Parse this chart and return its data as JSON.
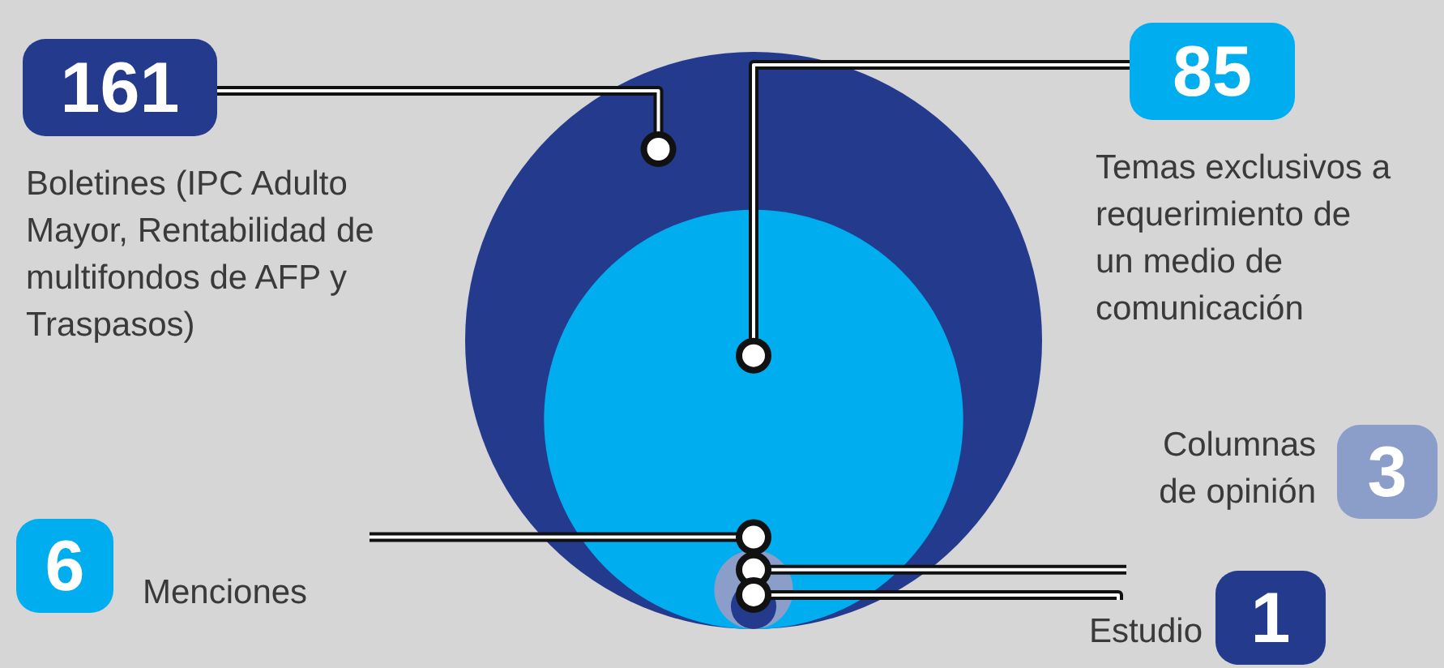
{
  "chart_data": {
    "type": "other",
    "categories": [
      "Boletines (IPC Adulto Mayor, Rentabilidad de multifondos de AFP y Traspasos)",
      "Temas exclusivos a requerimiento de un medio de comunicación",
      "Menciones",
      "Columnas de opinión",
      "Estudio"
    ],
    "values": [
      161,
      85,
      6,
      3,
      1
    ],
    "data_labels": true,
    "colors": [
      "#243a8c",
      "#00adef",
      "#00adef",
      "#8a9ec9",
      "#243a8c"
    ]
  }
}
